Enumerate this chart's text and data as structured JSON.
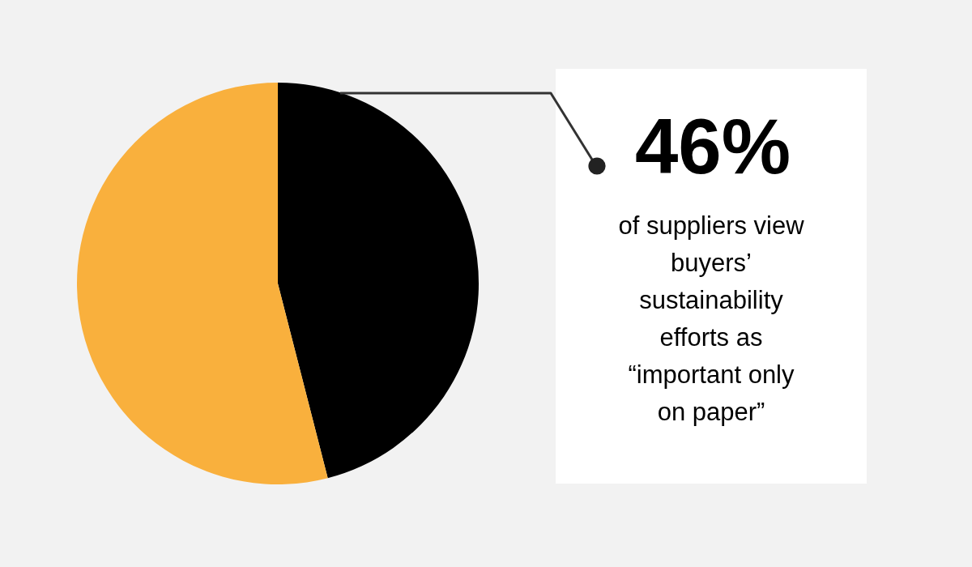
{
  "chart_data": {
    "type": "pie",
    "categories": [
      null,
      null
    ],
    "values": [
      46,
      54
    ],
    "colors": [
      "#000000",
      "#f9b03d"
    ],
    "value_labels": [
      "46%",
      null
    ],
    "annotations": [
      "of suppliers view buyers’ sustainability efforts as “important only on paper”"
    ]
  }
}
